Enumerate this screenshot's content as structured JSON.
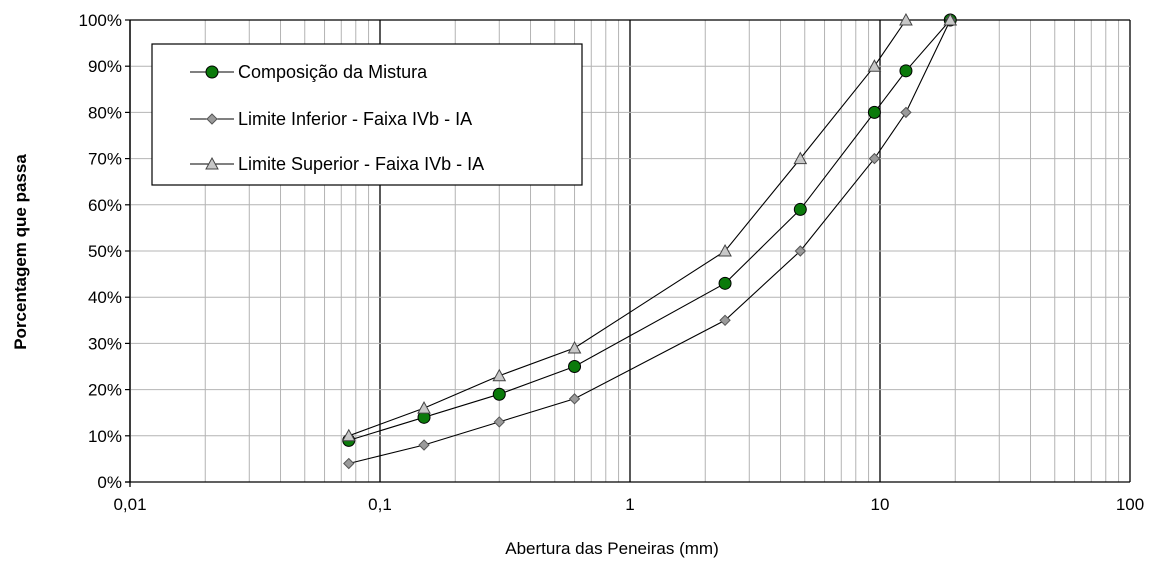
{
  "chart_data": {
    "type": "line",
    "xscale": "log",
    "xlim": [
      0.01,
      100
    ],
    "ylim": [
      0,
      100
    ],
    "xlabel": "Abertura das Peneiras (mm)",
    "ylabel": "Porcentagem que passa",
    "xtick_labels": [
      "0,01",
      "0,1",
      "1",
      "10",
      "100"
    ],
    "ytick_labels": [
      "0%",
      "10%",
      "20%",
      "30%",
      "40%",
      "50%",
      "60%",
      "70%",
      "80%",
      "90%",
      "100%"
    ],
    "grid": true,
    "legend_position": "top-left",
    "series": [
      {
        "name": "Composição da Mistura",
        "marker": "circle",
        "color": "#0b7a0b",
        "x": [
          0.075,
          0.15,
          0.3,
          0.6,
          2.4,
          4.8,
          9.5,
          12.7,
          19.1
        ],
        "y": [
          9,
          14,
          19,
          25,
          43,
          59,
          80,
          89,
          100
        ]
      },
      {
        "name": "Limite Inferior - Faixa IVb - IA",
        "marker": "diamond",
        "color": "#9a9a9a",
        "x": [
          0.075,
          0.15,
          0.3,
          0.6,
          2.4,
          4.8,
          9.5,
          12.7,
          19.1
        ],
        "y": [
          4,
          8,
          13,
          18,
          35,
          50,
          70,
          80,
          100
        ]
      },
      {
        "name": "Limite Superior - Faixa IVb - IA",
        "marker": "triangle",
        "color": "#c8c8c8",
        "x": [
          0.075,
          0.15,
          0.3,
          0.6,
          2.4,
          4.8,
          9.5,
          12.7,
          19.1
        ],
        "y": [
          10,
          16,
          23,
          29,
          50,
          70,
          90,
          100,
          100
        ]
      }
    ]
  }
}
